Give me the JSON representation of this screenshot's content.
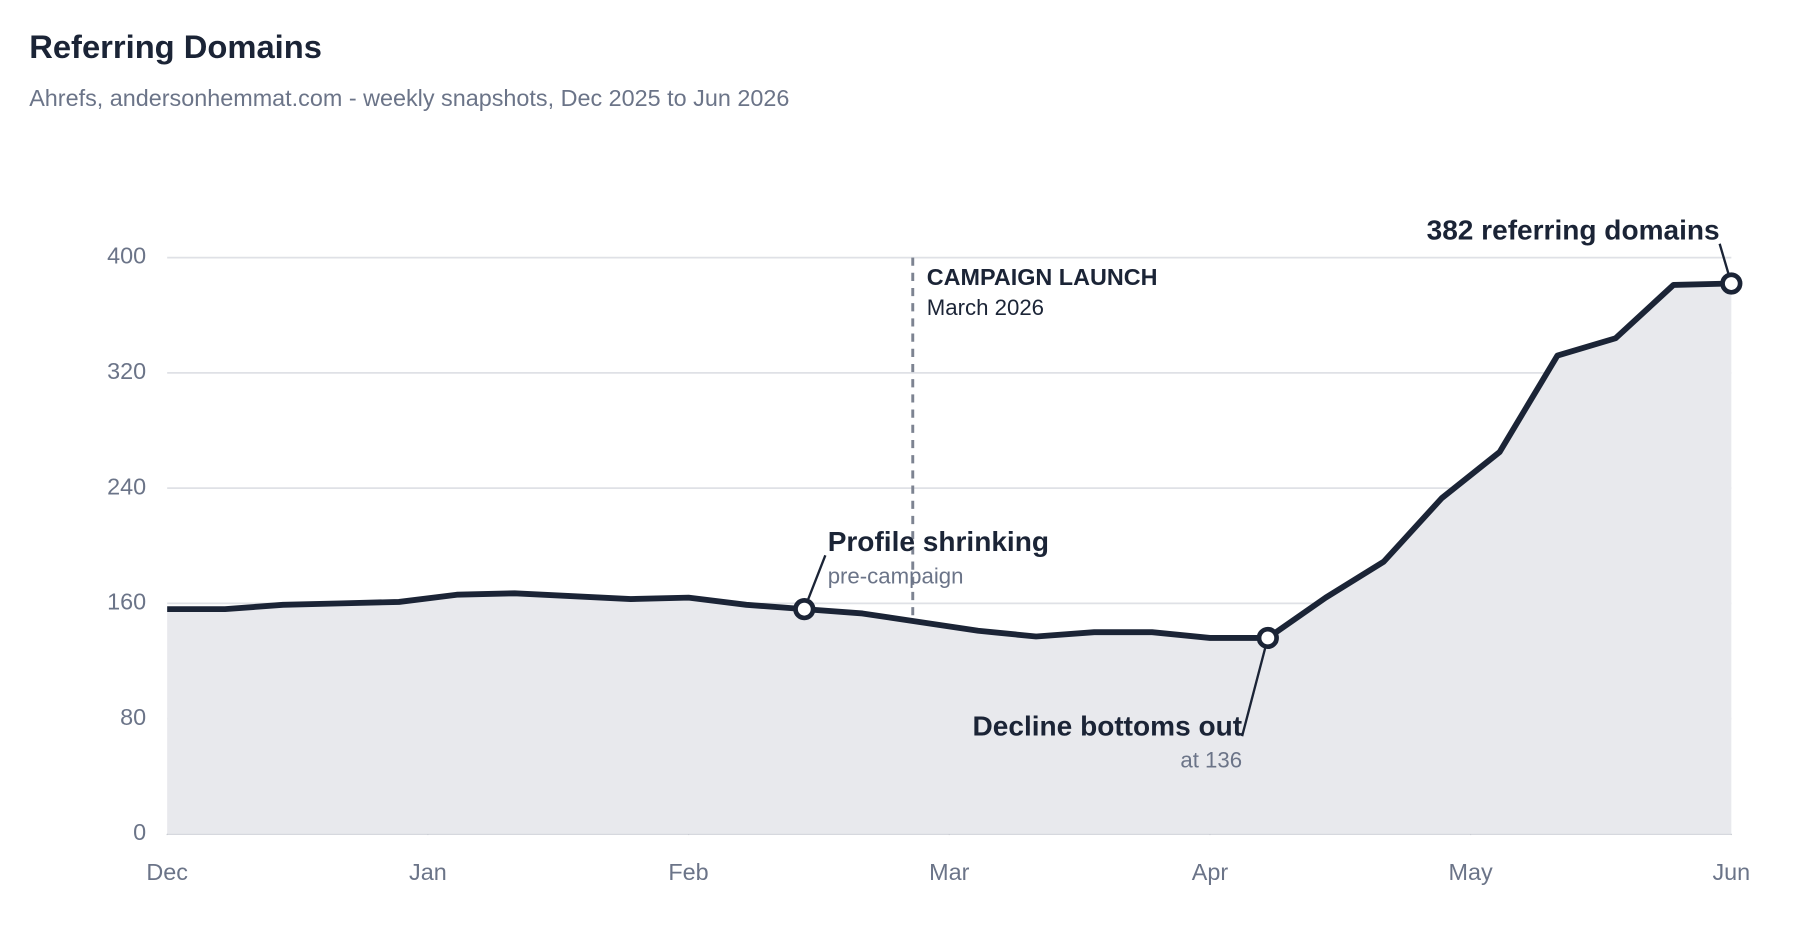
{
  "chart_data": {
    "type": "line",
    "title": "Referring Domains",
    "subtitle": "Ahrefs, andersonhemmat.com - weekly snapshots, Dec 2025 to Jun 2026",
    "x": [
      0,
      0.222,
      0.444,
      0.667,
      0.889,
      1.111,
      1.333,
      1.556,
      1.778,
      2,
      2.222,
      2.444,
      2.667,
      2.889,
      3.111,
      3.333,
      3.556,
      3.778,
      4,
      4.222,
      4.444,
      4.667,
      4.889,
      5.111,
      5.333,
      5.556,
      5.778,
      6
    ],
    "values": [
      156,
      156,
      159,
      160,
      161,
      166,
      167,
      165,
      163,
      164,
      159,
      156,
      153,
      147,
      141,
      137,
      140,
      140,
      136,
      136,
      164,
      189,
      233,
      265,
      332,
      344,
      381,
      382
    ],
    "color": "#1b2436",
    "area_color": "#e8e9ed",
    "xlim": [
      0,
      6
    ],
    "xticks": [
      {
        "value": 0,
        "label": "Dec"
      },
      {
        "value": 1,
        "label": "Jan"
      },
      {
        "value": 2,
        "label": "Feb"
      },
      {
        "value": 3,
        "label": "Mar"
      },
      {
        "value": 4,
        "label": "Apr"
      },
      {
        "value": 5,
        "label": "May"
      },
      {
        "value": 6,
        "label": "Jun"
      }
    ],
    "ylim": [
      0,
      400
    ],
    "yticks": [
      0,
      80,
      160,
      240,
      320,
      400
    ],
    "grid": true,
    "events": [
      {
        "x": 2.86,
        "label": "CAMPAIGN LAUNCH",
        "sublabel": "March 2026"
      }
    ],
    "annotations": [
      {
        "x": 2.444,
        "value": 156,
        "text": "Profile shrinking",
        "subtext": "pre-campaign"
      },
      {
        "x": 4.222,
        "value": 136,
        "text": "Decline bottoms out",
        "subtext": "at 136"
      },
      {
        "x": 6,
        "value": 382,
        "text": "382 referring domains"
      }
    ]
  }
}
